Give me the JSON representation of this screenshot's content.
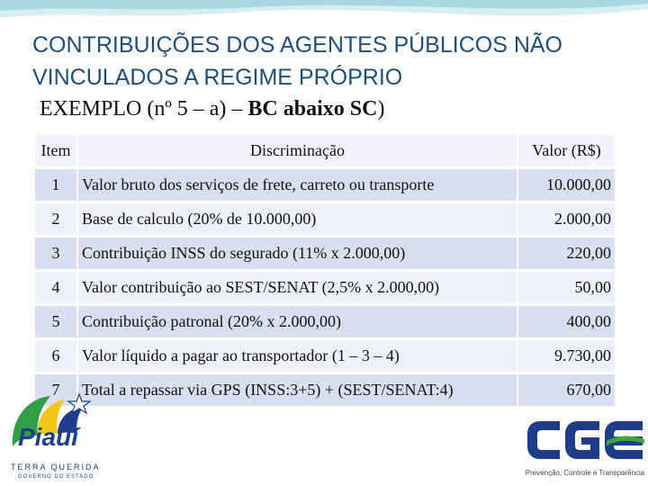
{
  "slide": {
    "title": "CONTRIBUIÇÕES DOS AGENTES PÚBLICOS NÃO VINCULADOS A REGIME PRÓPRIO",
    "subtitle_prefix": "EXEMPLO (nº 5 – a) – ",
    "subtitle_bold": "BC abaixo SC",
    "subtitle_suffix": ")"
  },
  "table": {
    "headers": [
      "Item",
      "Discriminação",
      "Valor (R$)"
    ],
    "rows": [
      {
        "item": "1",
        "desc": "Valor bruto dos serviços de frete, carreto ou transporte",
        "value": "10.000,00"
      },
      {
        "item": "2",
        "desc": "Base de calculo (20% de 10.000,00)",
        "value": "2.000,00"
      },
      {
        "item": "3",
        "desc": "Contribuição INSS do segurado (11% x 2.000,00)",
        "value": "220,00"
      },
      {
        "item": "4",
        "desc": "Valor contribuição ao SEST/SENAT (2,5% x 2.000,00)",
        "value": "50,00"
      },
      {
        "item": "5",
        "desc": "Contribuição patronal (20% x 2.000,00)",
        "value": "400,00"
      },
      {
        "item": "6",
        "desc": "Valor líquido a pagar ao transportador (1 – 3 – 4)",
        "value": "9.730,00"
      },
      {
        "item": "7",
        "desc": "Total a repassar via GPS (INSS:3+5) + (SEST/SENAT:4)",
        "value": "670,00"
      }
    ]
  },
  "logos": {
    "piaui": {
      "name": "Piauí",
      "slogan": "TERRA QUERIDA",
      "gov": "GOVERNO DO ESTADO"
    },
    "cge": {
      "name": "CGE",
      "tagline": "Prevenção, Controle e Transparência"
    }
  },
  "colors": {
    "title": "#1f4e79",
    "row_dark": "#d9dfee",
    "row_light": "#eef1f8",
    "cge_blue": "#1f3c88",
    "cge_green": "#3aa935"
  }
}
